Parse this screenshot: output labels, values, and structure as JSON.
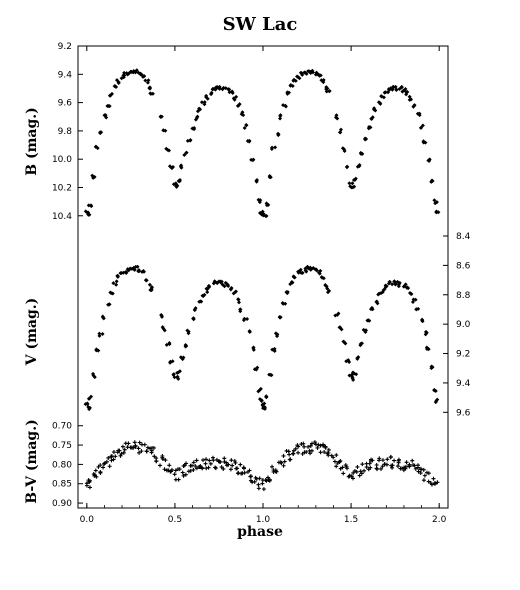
{
  "chart_data": {
    "type": "scatter",
    "title": "SW Lac",
    "xlabel": "phase",
    "marker_color": "#000000",
    "x_axis": {
      "range": [
        -0.05,
        2.05
      ],
      "ticks": [
        0.0,
        0.5,
        1.0,
        1.5,
        2.0
      ],
      "tick_labels": [
        "0.0",
        "0.5",
        "1.0",
        "1.5",
        "2.0"
      ]
    },
    "panels": [
      {
        "id": "B",
        "ylabel": "B (mag.)",
        "y_inverted": true,
        "y_axis_side": "left",
        "y_range": [
          9.2,
          10.55
        ],
        "y_ticks": [
          9.2,
          9.4,
          9.6,
          9.8,
          10.0,
          10.2,
          10.4
        ],
        "y_tick_labels": [
          "9.2",
          "9.4",
          "9.6",
          "9.8",
          "10.0",
          "10.2",
          "10.4"
        ],
        "curve": {
          "max_brightness_phase_1": 0.27,
          "max_brightness_phase_2": 0.77,
          "max_1": 9.38,
          "max_2": 9.5,
          "primary_min": 10.4,
          "secondary_min": 10.2
        }
      },
      {
        "id": "V",
        "ylabel": "V (mag.)",
        "y_inverted": true,
        "y_axis_side": "right",
        "y_range": [
          8.4,
          9.7
        ],
        "y_ticks": [
          8.4,
          8.6,
          8.8,
          9.0,
          9.2,
          9.4,
          9.6
        ],
        "y_tick_labels": [
          "8.4",
          "8.6",
          "8.8",
          "9.0",
          "9.2",
          "9.4",
          "9.6"
        ],
        "curve": {
          "max_brightness_phase_1": 0.27,
          "max_brightness_phase_2": 0.77,
          "max_1": 8.62,
          "max_2": 8.72,
          "primary_min": 9.57,
          "secondary_min": 9.37
        }
      },
      {
        "id": "BV",
        "ylabel": "B-V (mag.)",
        "y_inverted": true,
        "y_axis_side": "left",
        "y_range": [
          0.68,
          0.905
        ],
        "y_ticks": [
          0.7,
          0.75,
          0.8,
          0.85,
          0.9
        ],
        "y_tick_labels": [
          "0.70",
          "0.75",
          "0.80",
          "0.85",
          "0.90"
        ],
        "curve": {
          "max_brightness_phase_1": 0.27,
          "max_brightness_phase_2": 0.77,
          "max_1": 0.755,
          "max_2": 0.795,
          "primary_min": 0.845,
          "secondary_min": 0.83
        }
      }
    ],
    "series": [
      {
        "name": "B",
        "values_phase_0_to_1": [
          [
            0.0,
            10.38
          ],
          [
            0.01,
            10.4
          ],
          [
            0.02,
            10.32
          ],
          [
            0.04,
            10.12
          ],
          [
            0.06,
            9.92
          ],
          [
            0.08,
            9.82
          ],
          [
            0.1,
            9.7
          ],
          [
            0.12,
            9.62
          ],
          [
            0.14,
            9.54
          ],
          [
            0.16,
            9.48
          ],
          [
            0.18,
            9.45
          ],
          [
            0.2,
            9.42
          ],
          [
            0.22,
            9.4
          ],
          [
            0.24,
            9.39
          ],
          [
            0.26,
            9.38
          ],
          [
            0.28,
            9.38
          ],
          [
            0.3,
            9.39
          ],
          [
            0.32,
            9.41
          ],
          [
            0.34,
            9.45
          ],
          [
            0.36,
            9.5
          ],
          [
            0.37,
            9.53
          ],
          [
            0.42,
            9.7
          ],
          [
            0.44,
            9.8
          ],
          [
            0.46,
            9.93
          ],
          [
            0.48,
            10.06
          ],
          [
            0.5,
            10.18
          ],
          [
            0.51,
            10.2
          ],
          [
            0.52,
            10.15
          ],
          [
            0.54,
            10.05
          ],
          [
            0.56,
            9.96
          ],
          [
            0.58,
            9.86
          ],
          [
            0.6,
            9.78
          ],
          [
            0.62,
            9.71
          ],
          [
            0.64,
            9.65
          ],
          [
            0.66,
            9.6
          ],
          [
            0.68,
            9.56
          ],
          [
            0.7,
            9.53
          ],
          [
            0.72,
            9.51
          ],
          [
            0.74,
            9.5
          ],
          [
            0.76,
            9.5
          ],
          [
            0.78,
            9.5
          ],
          [
            0.8,
            9.51
          ],
          [
            0.82,
            9.53
          ],
          [
            0.84,
            9.57
          ],
          [
            0.86,
            9.62
          ],
          [
            0.88,
            9.68
          ],
          [
            0.9,
            9.77
          ],
          [
            0.92,
            9.88
          ],
          [
            0.94,
            10.0
          ],
          [
            0.96,
            10.15
          ],
          [
            0.98,
            10.3
          ],
          [
            0.99,
            10.37
          ]
        ]
      },
      {
        "name": "V",
        "values_phase_0_to_1": [
          [
            0.0,
            9.55
          ],
          [
            0.01,
            9.57
          ],
          [
            0.02,
            9.5
          ],
          [
            0.04,
            9.35
          ],
          [
            0.06,
            9.18
          ],
          [
            0.08,
            9.07
          ],
          [
            0.1,
            8.95
          ],
          [
            0.12,
            8.86
          ],
          [
            0.14,
            8.78
          ],
          [
            0.16,
            8.72
          ],
          [
            0.18,
            8.68
          ],
          [
            0.2,
            8.65
          ],
          [
            0.22,
            8.64
          ],
          [
            0.24,
            8.63
          ],
          [
            0.26,
            8.62
          ],
          [
            0.28,
            8.62
          ],
          [
            0.3,
            8.63
          ],
          [
            0.32,
            8.65
          ],
          [
            0.34,
            8.69
          ],
          [
            0.36,
            8.74
          ],
          [
            0.37,
            8.77
          ],
          [
            0.42,
            8.94
          ],
          [
            0.44,
            9.03
          ],
          [
            0.46,
            9.13
          ],
          [
            0.48,
            9.25
          ],
          [
            0.5,
            9.35
          ],
          [
            0.51,
            9.37
          ],
          [
            0.52,
            9.33
          ],
          [
            0.54,
            9.23
          ],
          [
            0.56,
            9.14
          ],
          [
            0.58,
            9.05
          ],
          [
            0.6,
            8.97
          ],
          [
            0.62,
            8.9
          ],
          [
            0.64,
            8.85
          ],
          [
            0.66,
            8.8
          ],
          [
            0.68,
            8.77
          ],
          [
            0.7,
            8.74
          ],
          [
            0.72,
            8.72
          ],
          [
            0.74,
            8.72
          ],
          [
            0.76,
            8.72
          ],
          [
            0.78,
            8.73
          ],
          [
            0.8,
            8.74
          ],
          [
            0.82,
            8.76
          ],
          [
            0.84,
            8.79
          ],
          [
            0.86,
            8.84
          ],
          [
            0.88,
            8.9
          ],
          [
            0.9,
            8.97
          ],
          [
            0.92,
            9.06
          ],
          [
            0.94,
            9.17
          ],
          [
            0.96,
            9.3
          ],
          [
            0.98,
            9.45
          ],
          [
            0.99,
            9.52
          ]
        ]
      },
      {
        "name": "B-V",
        "values_phase_0_to_1": [
          [
            0.0,
            0.85
          ],
          [
            0.02,
            0.845
          ],
          [
            0.04,
            0.83
          ],
          [
            0.06,
            0.82
          ],
          [
            0.08,
            0.81
          ],
          [
            0.1,
            0.8
          ],
          [
            0.12,
            0.79
          ],
          [
            0.14,
            0.78
          ],
          [
            0.16,
            0.775
          ],
          [
            0.18,
            0.77
          ],
          [
            0.2,
            0.765
          ],
          [
            0.22,
            0.76
          ],
          [
            0.24,
            0.758
          ],
          [
            0.26,
            0.757
          ],
          [
            0.28,
            0.756
          ],
          [
            0.3,
            0.757
          ],
          [
            0.32,
            0.76
          ],
          [
            0.34,
            0.762
          ],
          [
            0.36,
            0.765
          ],
          [
            0.38,
            0.768
          ],
          [
            0.4,
            0.78
          ],
          [
            0.42,
            0.79
          ],
          [
            0.44,
            0.8
          ],
          [
            0.46,
            0.81
          ],
          [
            0.48,
            0.82
          ],
          [
            0.5,
            0.828
          ],
          [
            0.52,
            0.825
          ],
          [
            0.54,
            0.818
          ],
          [
            0.56,
            0.812
          ],
          [
            0.58,
            0.808
          ],
          [
            0.6,
            0.805
          ],
          [
            0.62,
            0.802
          ],
          [
            0.64,
            0.8
          ],
          [
            0.66,
            0.798
          ],
          [
            0.68,
            0.797
          ],
          [
            0.7,
            0.796
          ],
          [
            0.72,
            0.795
          ],
          [
            0.74,
            0.796
          ],
          [
            0.76,
            0.797
          ],
          [
            0.78,
            0.798
          ],
          [
            0.8,
            0.8
          ],
          [
            0.82,
            0.802
          ],
          [
            0.84,
            0.805
          ],
          [
            0.86,
            0.81
          ],
          [
            0.88,
            0.815
          ],
          [
            0.9,
            0.822
          ],
          [
            0.92,
            0.828
          ],
          [
            0.94,
            0.835
          ],
          [
            0.96,
            0.842
          ],
          [
            0.98,
            0.848
          ]
        ]
      }
    ],
    "grid": false,
    "legend": "none"
  }
}
